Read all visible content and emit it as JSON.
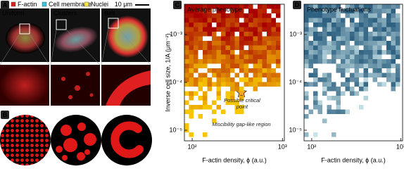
{
  "panel_labels": [
    "A",
    "B",
    "C",
    "D"
  ],
  "panel_a": {
    "legend": [
      {
        "name": "F-actin",
        "color": "#e02020"
      },
      {
        "name": "Cell membrane",
        "color": "#39c5e0"
      },
      {
        "name": "Nuclei",
        "color": "#f5e642"
      }
    ],
    "scale_bar": "10 μm",
    "phenotypes": [
      "Uniform",
      "Clusters",
      "Belt"
    ]
  },
  "chart_data": [
    {
      "type": "heatmap",
      "title": "Average phenotype",
      "xlabel": "F-actin density, ϕ (a.u.)",
      "ylabel": "Inverse cell size, 1/A (μm⁻²)",
      "log_x": true,
      "log_y": true,
      "xlim": [
        82,
        1050
      ],
      "ylim": [
        6e-06,
        0.0043
      ],
      "xticks": [
        {
          "value": 100,
          "label": "10²"
        },
        {
          "value": 1000,
          "label": "10³"
        }
      ],
      "yticks": [
        {
          "value": 1e-05,
          "label": "10⁻⁵"
        },
        {
          "value": 0.0001,
          "label": "10⁻⁴"
        },
        {
          "value": 0.001,
          "label": "10⁻³"
        }
      ],
      "colormap": [
        "#a80000",
        "#f7c600"
      ],
      "annotations": [
        "Possible critical point",
        "Miscibility gap-like region"
      ]
    },
    {
      "type": "heatmap",
      "title": "Phenotype fluctuations",
      "xlabel": "F-actin density, ϕ (a.u.)",
      "log_x": true,
      "log_y": true,
      "xlim": [
        82,
        1050
      ],
      "ylim": [
        6e-06,
        0.0043
      ],
      "xticks": [
        {
          "value": 100,
          "label": "10²"
        },
        {
          "value": 1000,
          "label": "10³"
        }
      ],
      "yticks": [
        {
          "value": 1e-05,
          "label": "10⁻⁵"
        },
        {
          "value": 0.0001,
          "label": "10⁻⁴"
        },
        {
          "value": 0.001,
          "label": "10⁻³"
        }
      ],
      "colormap": [
        "#2f6282",
        "#c9e4e8"
      ]
    }
  ]
}
